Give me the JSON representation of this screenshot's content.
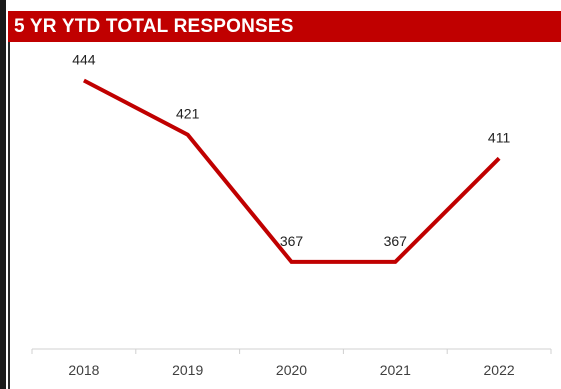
{
  "header": {
    "title": "5 YR YTD TOTAL RESPONSES"
  },
  "colors": {
    "title_band": "#c00000",
    "title_text": "#ffffff",
    "line": "#c00000",
    "axis": "#d0d0d0"
  },
  "chart_data": {
    "type": "line",
    "title": "5 YR YTD TOTAL RESPONSES",
    "categories": [
      "2018",
      "2019",
      "2020",
      "2021",
      "2022"
    ],
    "series": [
      {
        "values": [
          444,
          421,
          367,
          367,
          411
        ]
      }
    ],
    "data_labels": [
      "444",
      "421",
      "367",
      "367",
      "411"
    ],
    "xlabel": "",
    "ylabel": "",
    "ylim": [
      330,
      454
    ],
    "grid": false,
    "legend": "none"
  }
}
